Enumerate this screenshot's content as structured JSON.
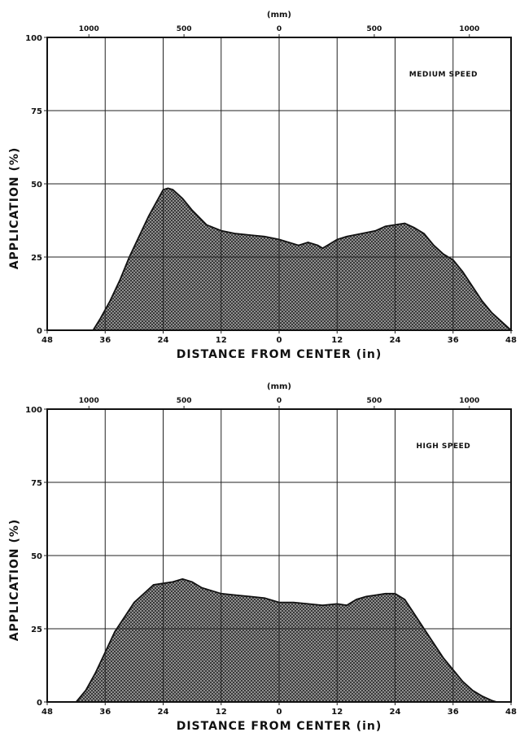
{
  "chart_data": [
    {
      "type": "area",
      "title": "",
      "annotation": "MEDIUM SPEED",
      "xlabel": "DISTANCE FROM CENTER (in)",
      "ylabel": "APPLICATION (%)",
      "top_axis_label": "(mm)",
      "xlim": [
        -48,
        48
      ],
      "ylim": [
        0,
        100
      ],
      "x_ticks": [
        "48",
        "36",
        "24",
        "12",
        "0",
        "12",
        "24",
        "36",
        "48"
      ],
      "y_ticks": [
        "0",
        "25",
        "50",
        "75",
        "100"
      ],
      "top_ticks": [
        {
          "value_in": -39.37,
          "label": "1000"
        },
        {
          "value_in": -19.69,
          "label": "500"
        },
        {
          "value_in": 0,
          "label": "0"
        },
        {
          "value_in": 19.69,
          "label": "500"
        },
        {
          "value_in": 39.37,
          "label": "1000"
        }
      ],
      "grid": true,
      "series": [
        {
          "x": [
            -38.5,
            -37,
            -35,
            -33,
            -31,
            -29,
            -27,
            -25,
            -24,
            -23,
            -22,
            -20,
            -18,
            -15,
            -12,
            -9,
            -6,
            -3,
            0,
            2,
            4,
            6,
            8,
            9,
            10,
            12,
            14,
            17,
            20,
            22,
            24,
            26,
            28,
            30,
            32,
            34,
            36,
            38,
            40,
            42,
            44,
            46,
            48
          ],
          "y": [
            0,
            4,
            10,
            17,
            25,
            32,
            39,
            45,
            48,
            48.5,
            48,
            45,
            41,
            36,
            34,
            33,
            32.5,
            32,
            31,
            30,
            29,
            30,
            29,
            28,
            29,
            31,
            32,
            33,
            34,
            35.5,
            36,
            36.5,
            35,
            33,
            29,
            26,
            24,
            20,
            15,
            10,
            6,
            3,
            0
          ]
        }
      ]
    },
    {
      "type": "area",
      "title": "",
      "annotation": "HIGH SPEED",
      "xlabel": "DISTANCE FROM CENTER (in)",
      "ylabel": "APPLICATION (%)",
      "top_axis_label": "(mm)",
      "xlim": [
        -48,
        48
      ],
      "ylim": [
        0,
        100
      ],
      "x_ticks": [
        "48",
        "36",
        "24",
        "12",
        "0",
        "12",
        "24",
        "36",
        "48"
      ],
      "y_ticks": [
        "0",
        "25",
        "50",
        "75",
        "100"
      ],
      "top_ticks": [
        {
          "value_in": -39.37,
          "label": "1000"
        },
        {
          "value_in": -19.69,
          "label": "500"
        },
        {
          "value_in": 0,
          "label": "0"
        },
        {
          "value_in": 19.69,
          "label": "500"
        },
        {
          "value_in": 39.37,
          "label": "1000"
        }
      ],
      "grid": true,
      "series": [
        {
          "x": [
            -42,
            -40,
            -38,
            -36,
            -34,
            -32,
            -30,
            -28,
            -26,
            -24,
            -22,
            -20,
            -18,
            -16,
            -14,
            -12,
            -9,
            -6,
            -3,
            0,
            3,
            6,
            9,
            12,
            14,
            16,
            18,
            20,
            22,
            24,
            26,
            28,
            30,
            32,
            34,
            36,
            38,
            40,
            42,
            44,
            45
          ],
          "y": [
            0,
            4,
            10,
            17,
            24,
            29,
            34,
            37,
            40,
            40.5,
            41,
            42,
            41,
            39,
            38,
            37,
            36.5,
            36,
            35.5,
            34,
            34,
            33.5,
            33,
            33.5,
            33,
            35,
            36,
            36.5,
            37,
            37,
            35,
            30,
            25,
            20,
            15,
            11,
            7,
            4,
            2,
            0.5,
            0
          ]
        }
      ]
    }
  ]
}
